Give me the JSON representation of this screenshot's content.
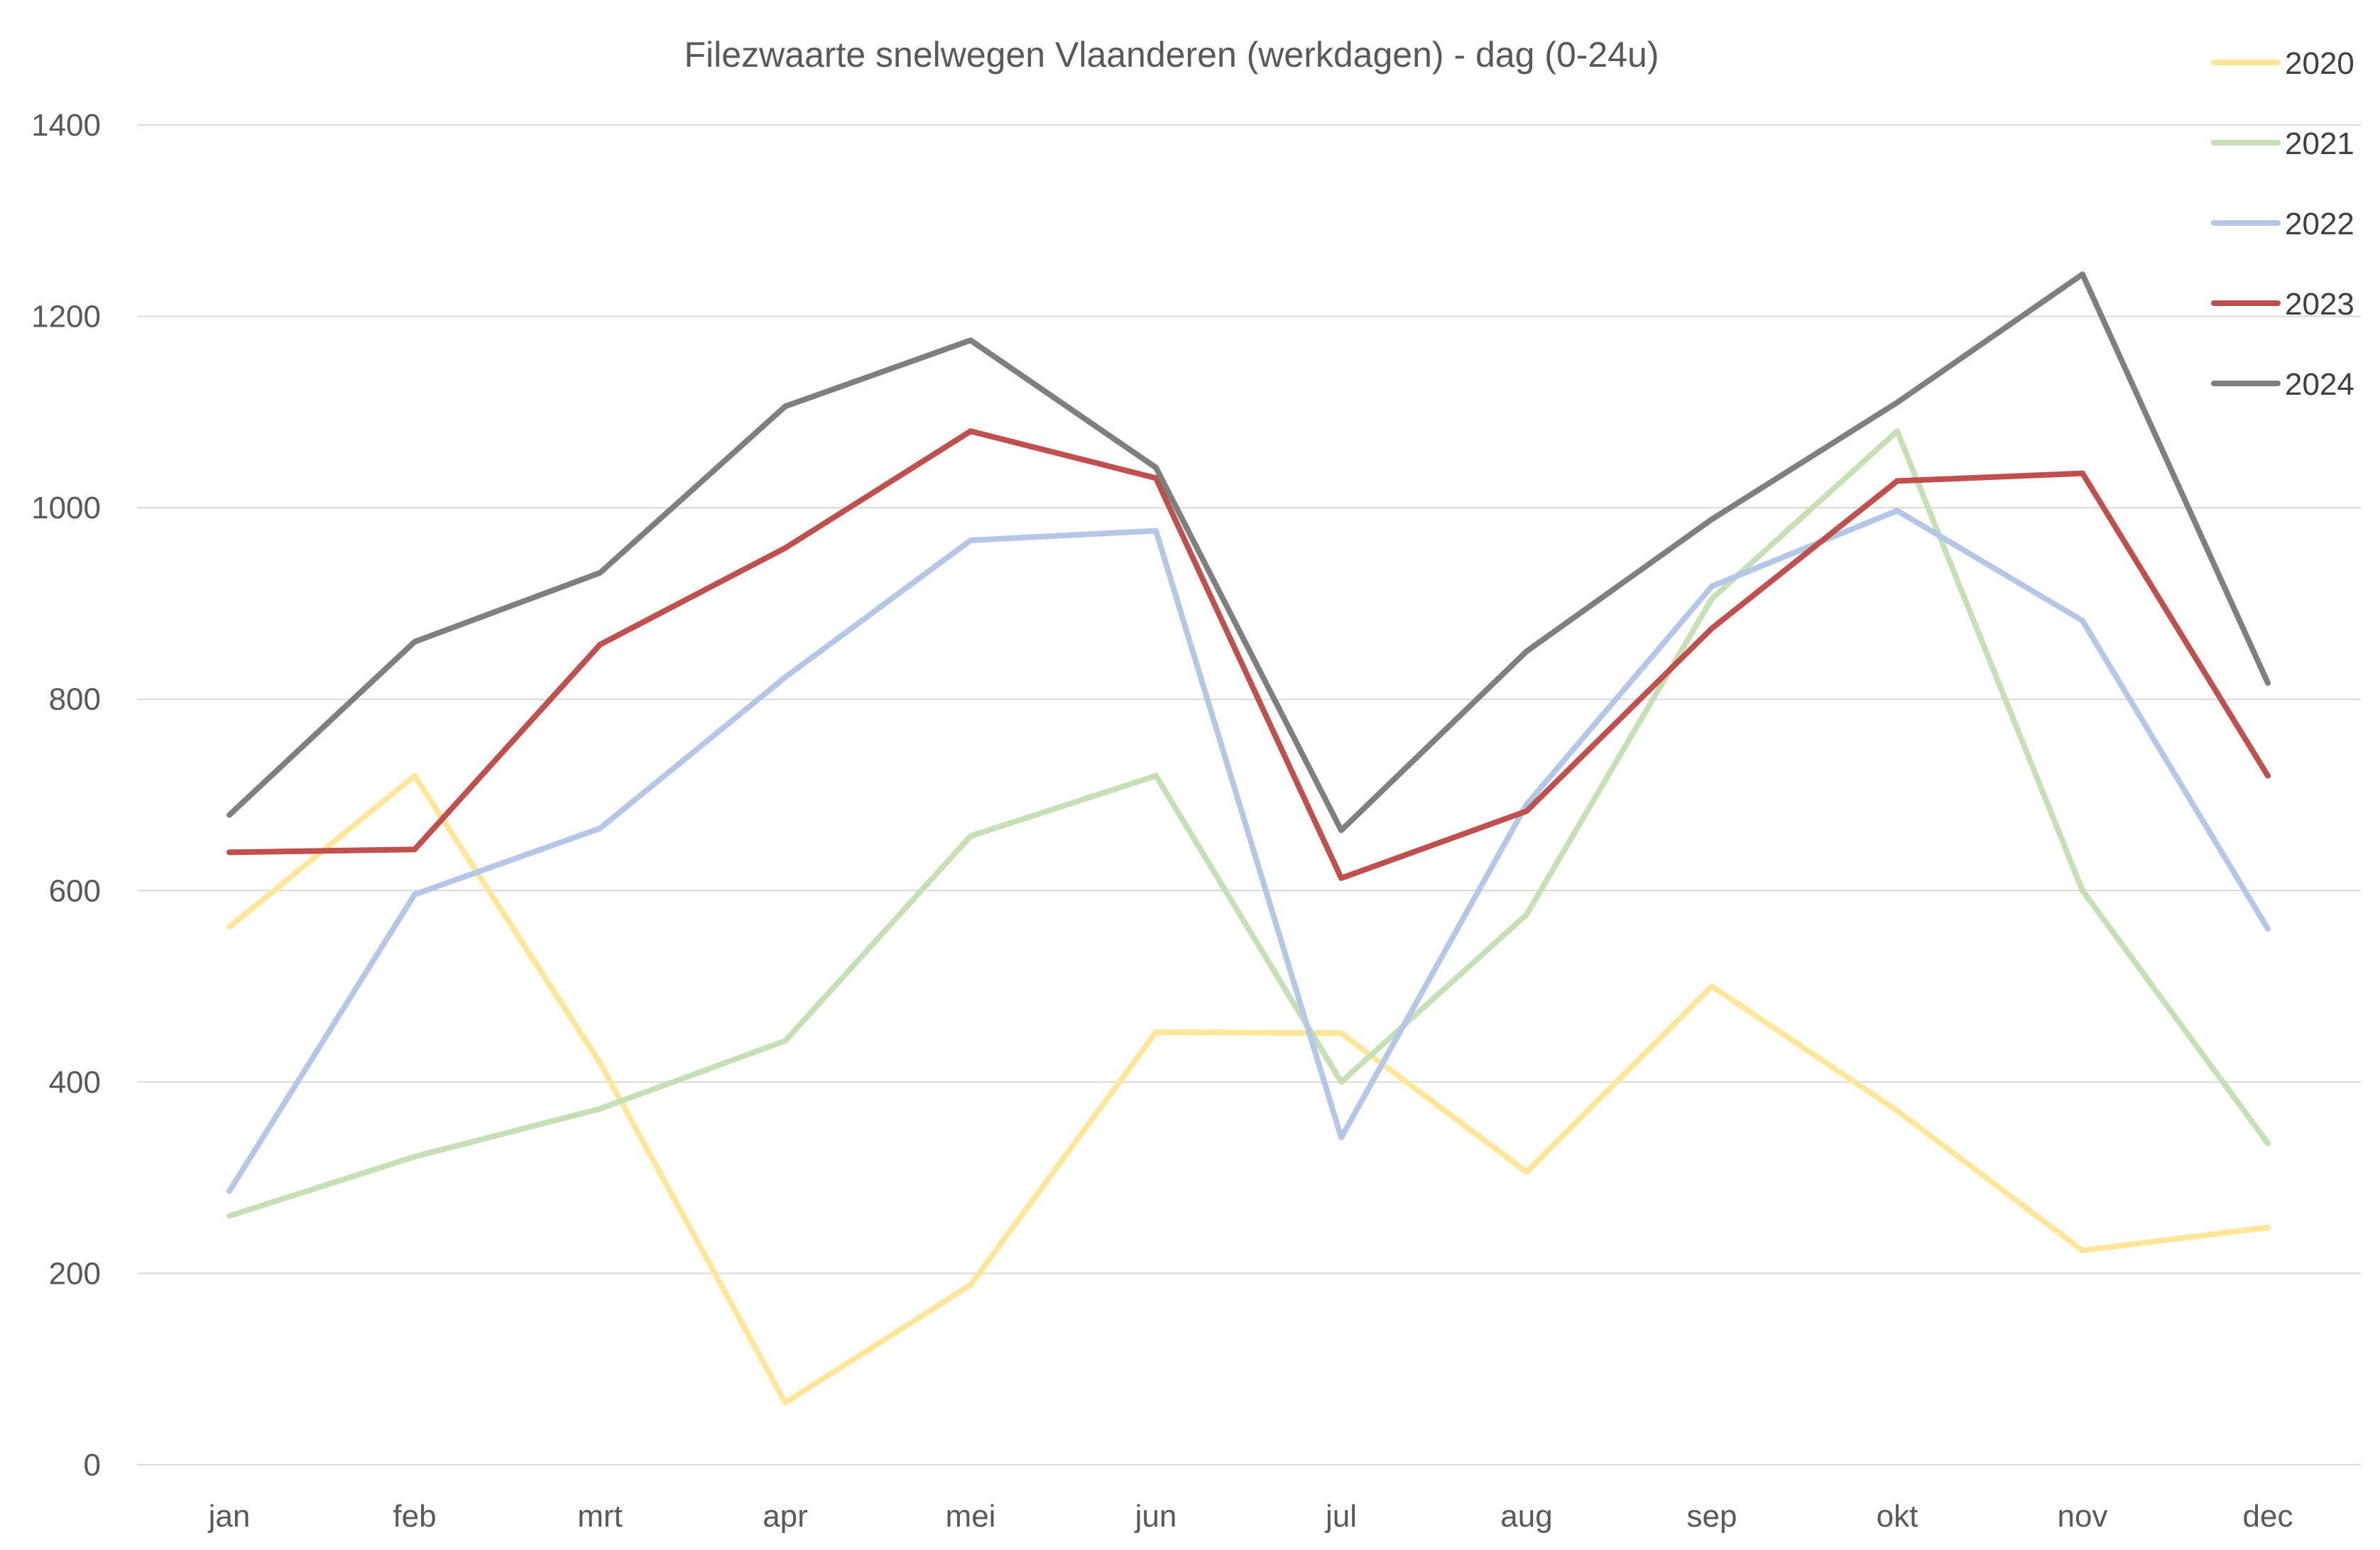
{
  "chart_data": {
    "type": "line",
    "title": "Filezwaarte snelwegen Vlaanderen (werkdagen) - dag (0-24u)",
    "xlabel": "",
    "ylabel": "",
    "categories": [
      "jan",
      "feb",
      "mrt",
      "apr",
      "mei",
      "jun",
      "jul",
      "aug",
      "sep",
      "okt",
      "nov",
      "dec"
    ],
    "ylim": [
      0,
      1400
    ],
    "yticks": [
      0,
      200,
      400,
      600,
      800,
      1000,
      1200,
      1400
    ],
    "grid": true,
    "legend_position": "right",
    "series": [
      {
        "name": "2020",
        "color": "#FFE699",
        "values": [
          562,
          720,
          420,
          65,
          188,
          452,
          451,
          306,
          500,
          370,
          224,
          248
        ]
      },
      {
        "name": "2021",
        "color": "#C5E0B4",
        "values": [
          260,
          322,
          372,
          443,
          657,
          720,
          400,
          575,
          905,
          1080,
          600,
          336
        ]
      },
      {
        "name": "2022",
        "color": "#B4C7E7",
        "values": [
          286,
          596,
          665,
          823,
          966,
          976,
          342,
          690,
          918,
          997,
          882,
          560
        ]
      },
      {
        "name": "2023",
        "color": "#C0504D",
        "values": [
          640,
          643,
          857,
          958,
          1080,
          1031,
          613,
          683,
          874,
          1028,
          1036,
          720
        ]
      },
      {
        "name": "2024",
        "color": "#7F7F7F",
        "values": [
          679,
          860,
          932,
          1106,
          1175,
          1042,
          663,
          850,
          988,
          1110,
          1244,
          817
        ]
      }
    ]
  }
}
